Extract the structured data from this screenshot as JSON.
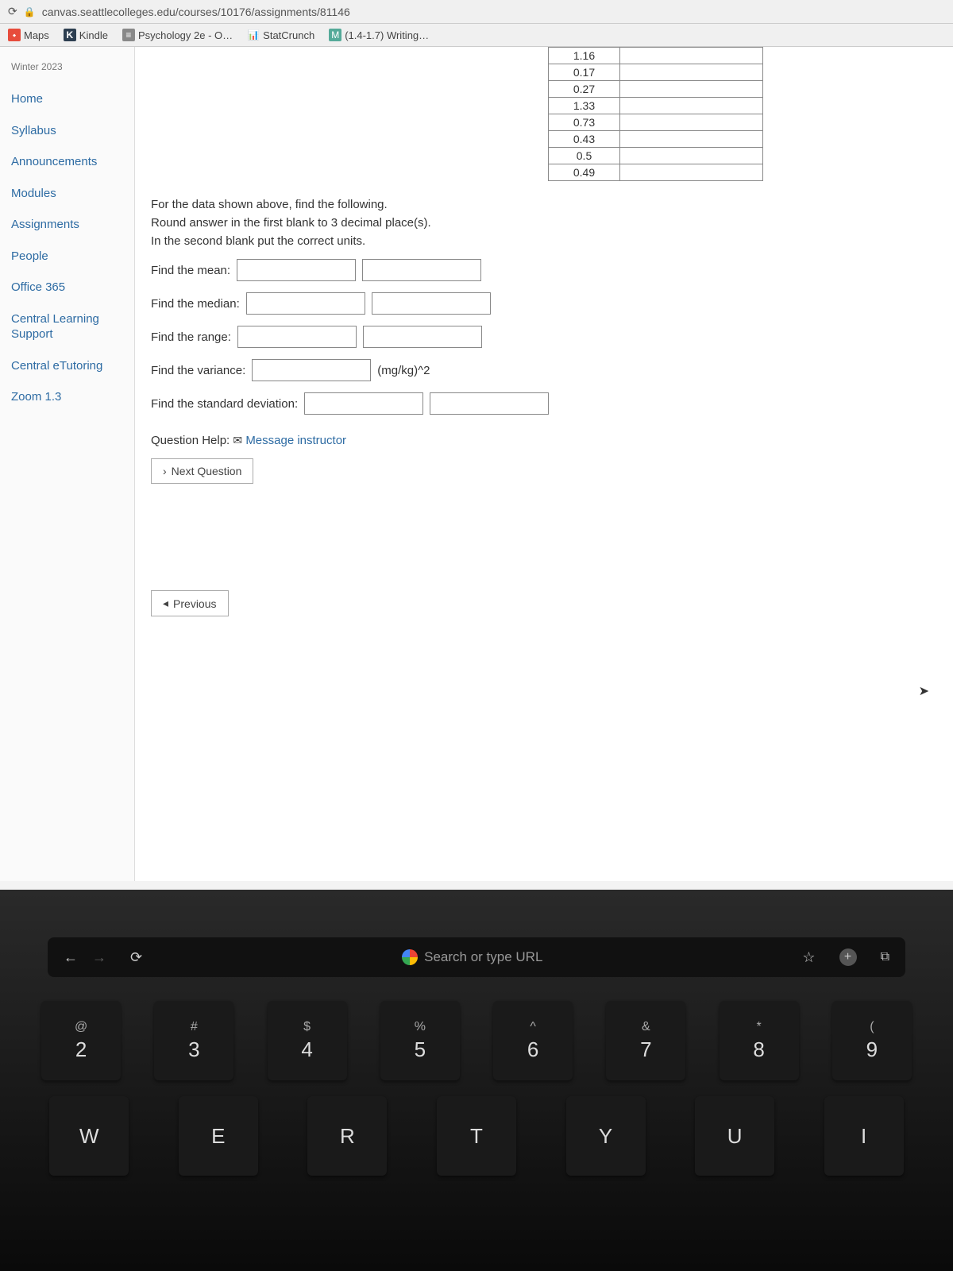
{
  "browser": {
    "url": "canvas.seattlecolleges.edu/courses/10176/assignments/81146"
  },
  "bookmarks": {
    "maps": "Maps",
    "kindle": "Kindle",
    "psych": "Psychology 2e - O…",
    "statcrunch": "StatCrunch",
    "writing": "(1.4-1.7) Writing…"
  },
  "sidebar": {
    "term": "Winter 2023",
    "items": [
      "Home",
      "Syllabus",
      "Announcements",
      "Modules",
      "Assignments",
      "People",
      "Office 365",
      "Central Learning Support",
      "Central eTutoring",
      "Zoom 1.3"
    ]
  },
  "data_values": [
    "1.16",
    "0.17",
    "0.27",
    "1.33",
    "0.73",
    "0.43",
    "0.5",
    "0.49"
  ],
  "question": {
    "line1": "For the data shown above, find the following.",
    "line2": "Round answer in the first blank to 3 decimal place(s).",
    "line3": "In the second blank put the correct units.",
    "mean_label": "Find the mean:",
    "median_label": "Find the median:",
    "range_label": "Find the range:",
    "variance_label": "Find the variance:",
    "variance_unit": "(mg/kg)^2",
    "sd_label": "Find the standard deviation:",
    "help_label": "Question Help:",
    "help_link": "Message instructor",
    "next_btn": "Next Question",
    "prev_btn": "Previous"
  },
  "touchbar": {
    "search_placeholder": "Search or type URL"
  },
  "keyboard": {
    "row1_syms": [
      "@",
      "#",
      "$",
      "%",
      "^",
      "&",
      "*",
      "("
    ],
    "row1_nums": [
      "2",
      "3",
      "4",
      "5",
      "6",
      "7",
      "8",
      "9"
    ],
    "row2": [
      "W",
      "E",
      "R",
      "T",
      "Y",
      "U",
      "I"
    ]
  }
}
